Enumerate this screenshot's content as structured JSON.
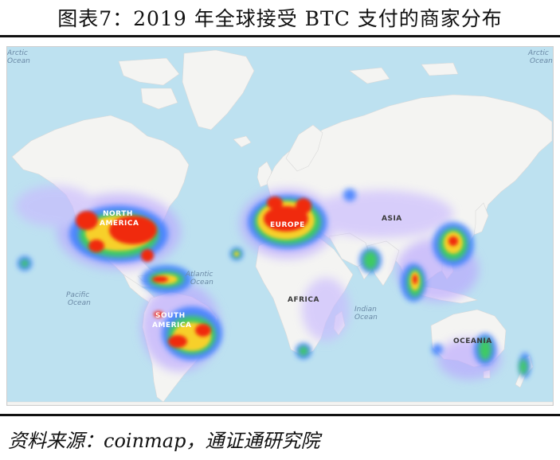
{
  "title": "图表7：2019 年全球接受 BTC 支付的商家分布",
  "source": "资料来源：coinmap，通证通研究院",
  "map": {
    "ocean_color": "#bde1f0",
    "land_color": "#f4f4f2",
    "labels": {
      "north_america_1": "NORTH",
      "north_america_2": "AMERICA",
      "south_america_1": "SOUTH",
      "south_america_2": "AMERICA",
      "europe": "EUROPE",
      "asia": "ASIA",
      "africa": "AFRICA",
      "oceania": "OCEANIA",
      "atlantic_1": "Atlantic",
      "atlantic_2": "Ocean",
      "pacific_1": "Pacific",
      "pacific_2": "Ocean",
      "indian_1": "Indian",
      "indian_2": "Ocean",
      "arctic_left_1": "Arctic",
      "arctic_left_2": "Ocean",
      "arctic_right_1": "Arctic",
      "arctic_right_2": "Ocean"
    },
    "heat_colors": [
      "#f02a10",
      "#f7d02a",
      "#3ccf5a",
      "#3a7dff",
      "#b9a6ff"
    ]
  }
}
